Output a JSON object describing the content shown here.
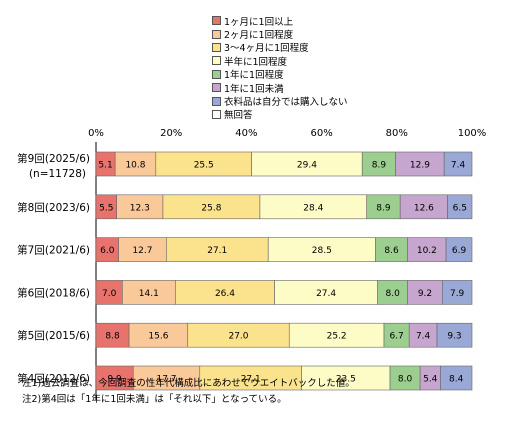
{
  "chart_data": {
    "type": "bar",
    "orientation": "horizontal",
    "stacked": true,
    "categories": [
      "第9回(2025/6)",
      "第8回(2023/6)",
      "第7回(2021/6)",
      "第6回(2018/6)",
      "第5回(2015/6)",
      "第4回(2012/6)"
    ],
    "category_sublabels": [
      "(n=11728)",
      "",
      "",
      "",
      "",
      ""
    ],
    "series": [
      {
        "name": "1ヶ月に1回以上",
        "color": "#e8736c",
        "values": [
          5.1,
          5.5,
          6.0,
          7.0,
          8.8,
          9.9
        ]
      },
      {
        "name": "2ヶ月に1回程度",
        "color": "#f9c99a",
        "values": [
          10.8,
          12.3,
          12.7,
          14.1,
          15.6,
          17.7
        ]
      },
      {
        "name": "3〜4ヶ月に1回程度",
        "color": "#fbe28c",
        "values": [
          25.5,
          25.8,
          27.1,
          26.4,
          27.0,
          27.1
        ]
      },
      {
        "name": "半年に1回程度",
        "color": "#fdfbc6",
        "values": [
          29.4,
          28.4,
          28.5,
          27.4,
          25.2,
          23.5
        ]
      },
      {
        "name": "1年に1回程度",
        "color": "#9ccf8f",
        "values": [
          8.9,
          8.9,
          8.6,
          8.0,
          6.7,
          8.0
        ]
      },
      {
        "name": "1年に1回未満",
        "color": "#c6a6cf",
        "values": [
          12.9,
          12.6,
          10.2,
          9.2,
          7.4,
          5.4
        ]
      },
      {
        "name": "衣料品は自分では購入しない",
        "color": "#9aa8d6",
        "values": [
          7.4,
          6.5,
          6.9,
          7.9,
          9.3,
          8.4
        ]
      },
      {
        "name": "無回答",
        "color": "#ffffff",
        "values": [
          0,
          0,
          0,
          0,
          0,
          0
        ]
      }
    ],
    "xlim": [
      0,
      100
    ],
    "xticks": [
      "0%",
      "20%",
      "40%",
      "60%",
      "80%",
      "100%"
    ],
    "legend_position": "top",
    "grid": false
  },
  "notes": [
    "注1)過去調査は、今回調査の性年代構成比にあわせてウエイトバックした値。",
    "注2)第4回は「1年に1回未満」は「それ以下」となっている。"
  ]
}
